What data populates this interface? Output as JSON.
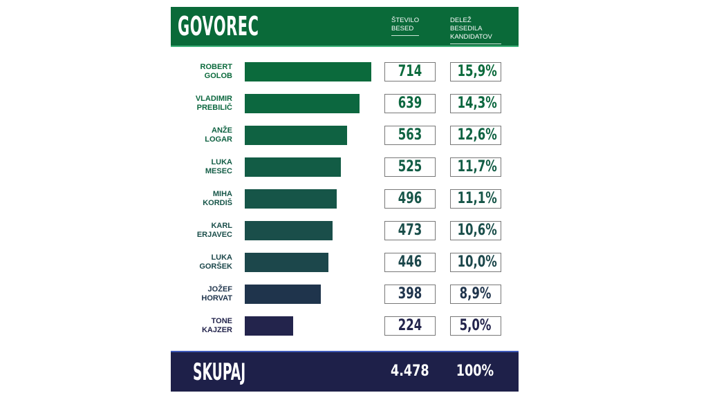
{
  "chart_data": {
    "type": "bar",
    "title": "GOVOREC",
    "columns": [
      "ŠTEVILO BESED",
      "DELEŽ BESEDILA KANDIDATOV"
    ],
    "categories": [
      [
        "ROBERT",
        "GOLOB"
      ],
      [
        "VLADIMIR",
        "PREBILIČ"
      ],
      [
        "ANŽE",
        "LOGAR"
      ],
      [
        "LUKA",
        "MESEC"
      ],
      [
        "MIHA",
        "KORDIŠ"
      ],
      [
        "KARL",
        "ERJAVEC"
      ],
      [
        "LUKA",
        "GORŠEK"
      ],
      [
        "JOŽEF",
        "HORVAT"
      ],
      [
        "TONE",
        "KAJZER"
      ]
    ],
    "values": [
      714,
      639,
      563,
      525,
      496,
      473,
      446,
      398,
      224
    ],
    "value_labels": [
      "714",
      "639",
      "563",
      "525",
      "496",
      "473",
      "446",
      "398",
      "224"
    ],
    "shares": [
      "15,9%",
      "14,3%",
      "12,6%",
      "11,7%",
      "11,1%",
      "10,6%",
      "10,0%",
      "8,9%",
      "5,0%"
    ],
    "colors": [
      "#0b6a3c",
      "#0c673f",
      "#0f6242",
      "#125c45",
      "#165548",
      "#1a4e4a",
      "#1c474b",
      "#1f344c",
      "#23244c"
    ],
    "total_label": "SKUPAJ",
    "total_words": "4.478",
    "total_share": "100%"
  },
  "colors": {
    "header": "#0a6a39",
    "footer": "#1e2049"
  }
}
